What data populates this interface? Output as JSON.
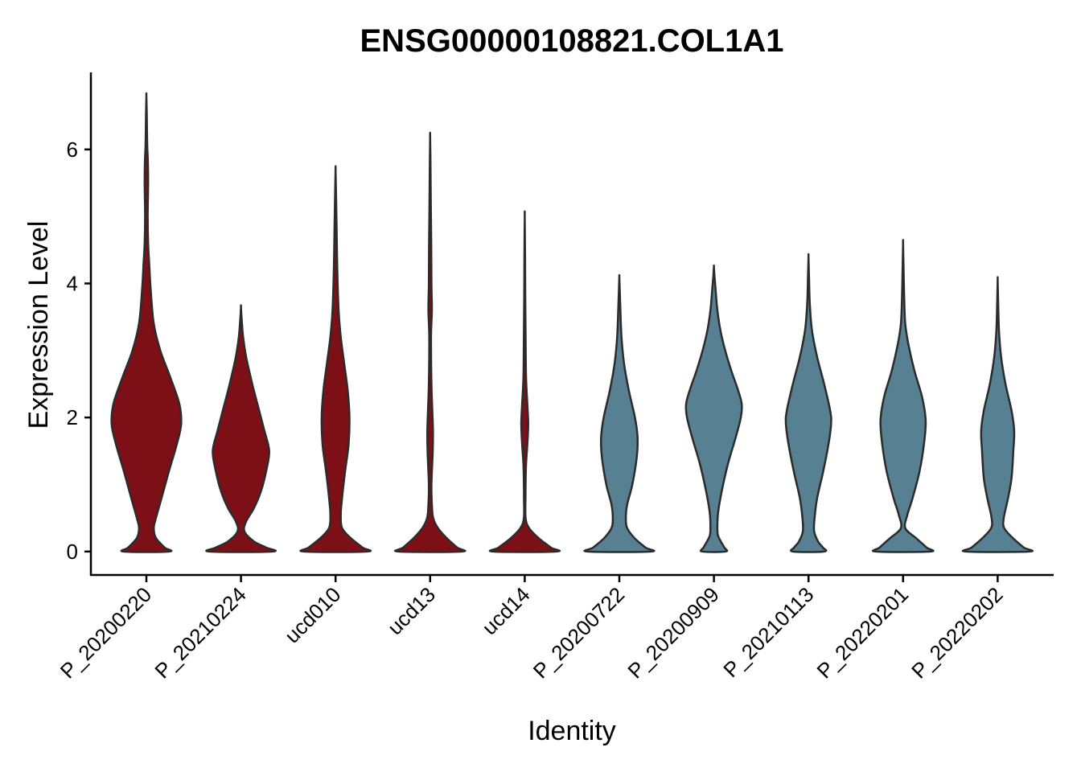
{
  "chart_data": {
    "type": "violin",
    "title": "ENSG00000108821.COL1A1",
    "xlabel": "Identity",
    "ylabel": "Expression Level",
    "ylim": [
      -0.35,
      7.15
    ],
    "yticks": [
      0,
      2,
      4,
      6
    ],
    "grid": false,
    "legend": "none",
    "categories": [
      "P_20200220",
      "P_20210224",
      "ucd010",
      "ucd13",
      "ucd14",
      "P_20200722",
      "P_20200909",
      "P_20210113",
      "P_20220201",
      "P_20220202"
    ],
    "colors": [
      "#7d1016",
      "#7d1016",
      "#7d1016",
      "#7d1016",
      "#7d1016",
      "#578093",
      "#578093",
      "#578093",
      "#578093",
      "#578093"
    ],
    "outline_color": "#2b2b2b",
    "violins": [
      {
        "category": "P_20200220",
        "max": 6.8,
        "profile": [
          [
            0,
            0.52
          ],
          [
            0.06,
            0.42
          ],
          [
            0.2,
            0.22
          ],
          [
            0.35,
            0.17
          ],
          [
            0.5,
            0.22
          ],
          [
            0.8,
            0.35
          ],
          [
            1.2,
            0.52
          ],
          [
            1.6,
            0.7
          ],
          [
            1.9,
            0.8
          ],
          [
            2.2,
            0.76
          ],
          [
            2.6,
            0.55
          ],
          [
            3.0,
            0.32
          ],
          [
            3.4,
            0.17
          ],
          [
            3.9,
            0.1
          ],
          [
            4.3,
            0.065
          ],
          [
            4.6,
            0.04
          ],
          [
            5.0,
            0.03
          ],
          [
            5.5,
            0.04
          ],
          [
            5.8,
            0.035
          ],
          [
            6.1,
            0.018
          ],
          [
            6.5,
            0.01
          ],
          [
            6.8,
            0.0
          ]
        ]
      },
      {
        "category": "P_20210224",
        "max": 3.65,
        "profile": [
          [
            0,
            0.72
          ],
          [
            0.06,
            0.58
          ],
          [
            0.15,
            0.3
          ],
          [
            0.3,
            0.08
          ],
          [
            0.45,
            0.12
          ],
          [
            0.65,
            0.3
          ],
          [
            0.9,
            0.46
          ],
          [
            1.2,
            0.58
          ],
          [
            1.5,
            0.65
          ],
          [
            1.8,
            0.54
          ],
          [
            2.1,
            0.42
          ],
          [
            2.5,
            0.26
          ],
          [
            2.9,
            0.12
          ],
          [
            3.2,
            0.05
          ],
          [
            3.45,
            0.018
          ],
          [
            3.65,
            0.0
          ]
        ]
      },
      {
        "category": "ucd010",
        "max": 5.7,
        "profile": [
          [
            0,
            0.72
          ],
          [
            0.06,
            0.62
          ],
          [
            0.2,
            0.35
          ],
          [
            0.35,
            0.15
          ],
          [
            0.55,
            0.12
          ],
          [
            0.8,
            0.15
          ],
          [
            1.2,
            0.22
          ],
          [
            1.6,
            0.3
          ],
          [
            2.0,
            0.32
          ],
          [
            2.4,
            0.28
          ],
          [
            2.8,
            0.2
          ],
          [
            3.2,
            0.12
          ],
          [
            3.6,
            0.07
          ],
          [
            4.2,
            0.04
          ],
          [
            4.8,
            0.025
          ],
          [
            5.3,
            0.012
          ],
          [
            5.7,
            0.0
          ]
        ]
      },
      {
        "category": "ucd13",
        "max": 6.2,
        "profile": [
          [
            0,
            0.72
          ],
          [
            0.06,
            0.62
          ],
          [
            0.2,
            0.38
          ],
          [
            0.35,
            0.18
          ],
          [
            0.5,
            0.07
          ],
          [
            0.7,
            0.04
          ],
          [
            1.0,
            0.03
          ],
          [
            1.5,
            0.06
          ],
          [
            1.8,
            0.065
          ],
          [
            2.1,
            0.05
          ],
          [
            2.5,
            0.03
          ],
          [
            3.2,
            0.02
          ],
          [
            3.6,
            0.04
          ],
          [
            4.0,
            0.03
          ],
          [
            4.6,
            0.025
          ],
          [
            5.2,
            0.015
          ],
          [
            5.8,
            0.008
          ],
          [
            6.2,
            0.0
          ]
        ]
      },
      {
        "category": "ucd14",
        "max": 5.0,
        "profile": [
          [
            0,
            0.72
          ],
          [
            0.06,
            0.6
          ],
          [
            0.2,
            0.32
          ],
          [
            0.35,
            0.1
          ],
          [
            0.5,
            0.02
          ],
          [
            0.8,
            0.018
          ],
          [
            1.0,
            0.02
          ],
          [
            1.3,
            0.03
          ],
          [
            1.6,
            0.06
          ],
          [
            1.9,
            0.08
          ],
          [
            2.2,
            0.06
          ],
          [
            2.6,
            0.03
          ],
          [
            3.2,
            0.02
          ],
          [
            3.8,
            0.012
          ],
          [
            4.4,
            0.008
          ],
          [
            5.0,
            0.0
          ]
        ]
      },
      {
        "category": "P_20200722",
        "max": 4.1,
        "profile": [
          [
            0,
            0.72
          ],
          [
            0.06,
            0.6
          ],
          [
            0.2,
            0.35
          ],
          [
            0.35,
            0.18
          ],
          [
            0.5,
            0.15
          ],
          [
            0.7,
            0.18
          ],
          [
            1.0,
            0.3
          ],
          [
            1.4,
            0.4
          ],
          [
            1.7,
            0.42
          ],
          [
            2.0,
            0.36
          ],
          [
            2.4,
            0.22
          ],
          [
            2.8,
            0.11
          ],
          [
            3.2,
            0.05
          ],
          [
            3.6,
            0.025
          ],
          [
            3.9,
            0.01
          ],
          [
            4.1,
            0.0
          ]
        ]
      },
      {
        "category": "P_20200909",
        "max": 4.25,
        "profile": [
          [
            0,
            0.27
          ],
          [
            0.06,
            0.24
          ],
          [
            0.15,
            0.16
          ],
          [
            0.25,
            0.09
          ],
          [
            0.4,
            0.08
          ],
          [
            0.6,
            0.1
          ],
          [
            0.9,
            0.18
          ],
          [
            1.3,
            0.32
          ],
          [
            1.7,
            0.5
          ],
          [
            2.0,
            0.62
          ],
          [
            2.2,
            0.64
          ],
          [
            2.4,
            0.56
          ],
          [
            2.7,
            0.4
          ],
          [
            3.0,
            0.26
          ],
          [
            3.3,
            0.15
          ],
          [
            3.6,
            0.08
          ],
          [
            3.9,
            0.04
          ],
          [
            4.1,
            0.015
          ],
          [
            4.25,
            0.0
          ]
        ]
      },
      {
        "category": "P_20210113",
        "max": 4.4,
        "profile": [
          [
            0,
            0.36
          ],
          [
            0.06,
            0.33
          ],
          [
            0.15,
            0.22
          ],
          [
            0.3,
            0.13
          ],
          [
            0.5,
            0.14
          ],
          [
            0.8,
            0.2
          ],
          [
            1.2,
            0.34
          ],
          [
            1.6,
            0.46
          ],
          [
            1.9,
            0.52
          ],
          [
            2.1,
            0.5
          ],
          [
            2.5,
            0.36
          ],
          [
            2.9,
            0.2
          ],
          [
            3.3,
            0.08
          ],
          [
            3.7,
            0.03
          ],
          [
            4.1,
            0.012
          ],
          [
            4.4,
            0.0
          ]
        ]
      },
      {
        "category": "P_20220201",
        "max": 4.6,
        "profile": [
          [
            0,
            0.62
          ],
          [
            0.06,
            0.54
          ],
          [
            0.2,
            0.3
          ],
          [
            0.35,
            0.05
          ],
          [
            0.55,
            0.1
          ],
          [
            0.8,
            0.22
          ],
          [
            1.2,
            0.38
          ],
          [
            1.6,
            0.48
          ],
          [
            1.95,
            0.52
          ],
          [
            2.3,
            0.44
          ],
          [
            2.7,
            0.26
          ],
          [
            3.1,
            0.12
          ],
          [
            3.4,
            0.05
          ],
          [
            3.8,
            0.025
          ],
          [
            4.2,
            0.012
          ],
          [
            4.6,
            0.0
          ]
        ]
      },
      {
        "category": "P_20220202",
        "max": 4.05,
        "profile": [
          [
            0,
            0.72
          ],
          [
            0.06,
            0.6
          ],
          [
            0.2,
            0.35
          ],
          [
            0.35,
            0.15
          ],
          [
            0.5,
            0.14
          ],
          [
            0.8,
            0.24
          ],
          [
            1.1,
            0.32
          ],
          [
            1.5,
            0.36
          ],
          [
            1.8,
            0.38
          ],
          [
            2.1,
            0.32
          ],
          [
            2.5,
            0.18
          ],
          [
            2.9,
            0.08
          ],
          [
            3.3,
            0.03
          ],
          [
            3.7,
            0.012
          ],
          [
            4.05,
            0.0
          ]
        ]
      }
    ]
  }
}
